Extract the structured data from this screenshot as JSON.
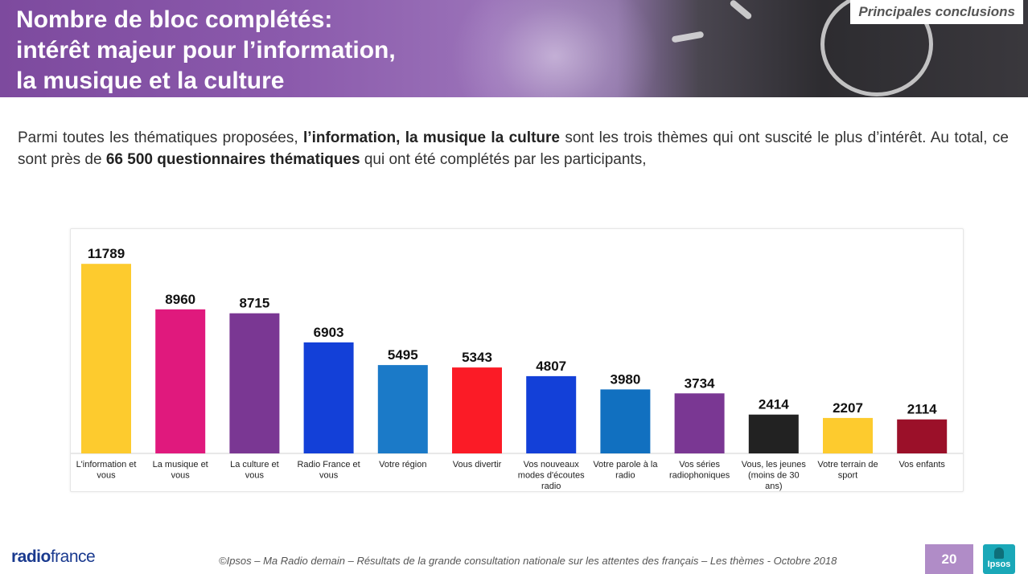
{
  "header": {
    "title_lines": [
      "Nombre de bloc complétés:",
      "intérêt majeur pour l’information,",
      "la musique et la culture"
    ],
    "badge": "Principales conclusions"
  },
  "intro": {
    "part1": "Parmi toutes les thématiques proposées, ",
    "bold1": "l’information, la musique la culture",
    "part2": " sont les trois thèmes qui ont suscité le plus d’intérêt. Au total, ce sont près de ",
    "bold2": "66 500 questionnaires thématiques",
    "part3": " qui ont été complétés par les participants,"
  },
  "chart_data": {
    "type": "bar",
    "categories": [
      [
        "L'information et",
        "vous"
      ],
      [
        "La musique et",
        "vous"
      ],
      [
        "La culture et",
        "vous"
      ],
      [
        "Radio France et",
        "vous"
      ],
      [
        "Votre région"
      ],
      [
        "Vous divertir"
      ],
      [
        "Vos nouveaux",
        "modes d'écoutes",
        "radio"
      ],
      [
        "Votre parole à la",
        "radio"
      ],
      [
        "Vos séries",
        "radiophoniques"
      ],
      [
        "Vous, les jeunes",
        "(moins de 30",
        "ans)"
      ],
      [
        "Votre terrain de",
        "sport"
      ],
      [
        "Vos enfants"
      ]
    ],
    "values": [
      11789,
      8960,
      8715,
      6903,
      5495,
      5343,
      4807,
      3980,
      3734,
      2414,
      2207,
      2114
    ],
    "colors": [
      "#fdcb2e",
      "#e0197d",
      "#7a3793",
      "#1340d8",
      "#1b7ac8",
      "#fb1b26",
      "#1340d8",
      "#1170c0",
      "#7a3793",
      "#222222",
      "#fdcb2e",
      "#9b1029"
    ],
    "ylim": [
      0,
      12000
    ],
    "grid": false,
    "legend": "none"
  },
  "footer": {
    "logo_radio": "radio",
    "logo_france": "france",
    "note": "©Ipsos – Ma Radio demain – Résultats  de la grande consultation nationale sur les attentes des français – Les thèmes -  Octobre 2018",
    "page_number": "20",
    "ipsos": "Ipsos"
  }
}
